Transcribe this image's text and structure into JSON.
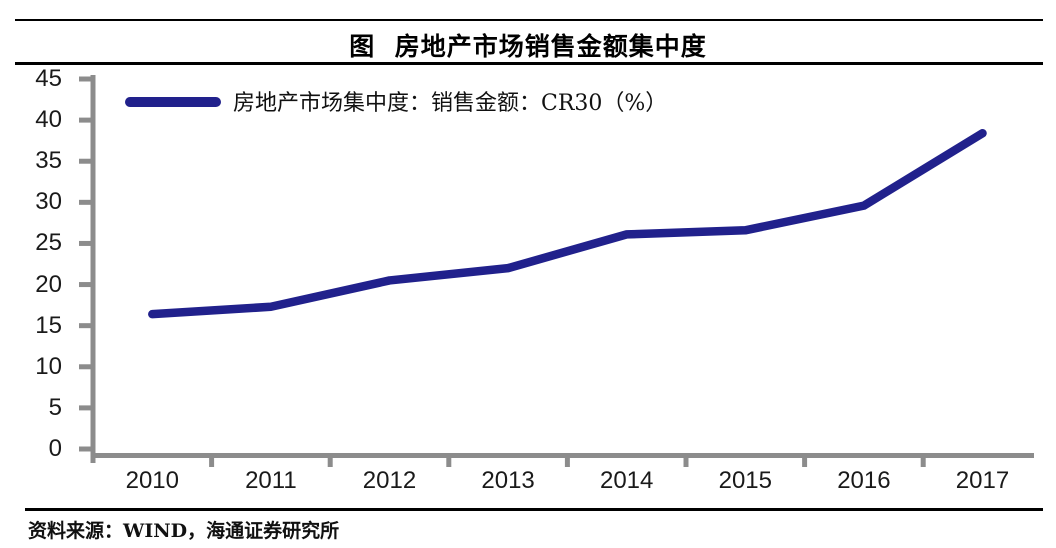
{
  "header": {
    "title": "图  房地产市场销售金额集中度"
  },
  "legend": {
    "label": "房地产市场集中度：销售金额：CR30（%）"
  },
  "footer": {
    "source": "资料来源：WIND，海通证券研究所"
  },
  "colors": {
    "line": "#21218C",
    "axis": "#8C8C8C",
    "text": "#1a1a1a",
    "rule": "#000000",
    "background": "#ffffff"
  },
  "chart_data": {
    "type": "line",
    "title": "图 房地产市场销售金额集中度",
    "x": [
      "2010",
      "2011",
      "2012",
      "2013",
      "2014",
      "2015",
      "2016",
      "2017"
    ],
    "series": [
      {
        "name": "房地产市场集中度：销售金额：CR30（%）",
        "color": "#21218C",
        "values": [
          16.4,
          17.3,
          20.5,
          22.0,
          26.1,
          26.6,
          29.6,
          38.4
        ]
      }
    ],
    "xlabel": "",
    "ylabel": "",
    "ylim": [
      0,
      45
    ],
    "ytick_step": 5,
    "yticks": [
      0,
      5,
      10,
      15,
      20,
      25,
      30,
      35,
      40,
      45
    ],
    "grid": false,
    "legend_position": "top-left",
    "source_note": "资料来源：WIND，海通证券研究所"
  }
}
